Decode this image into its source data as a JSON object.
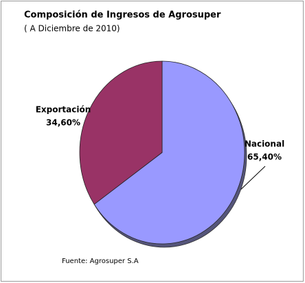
{
  "chart_data": {
    "type": "pie",
    "title": "Composición de Ingresos de Agrosuper",
    "subtitle": "( A Diciembre de 2010)",
    "source": "Fuente: Agrosuper S.A",
    "categories": [
      "Nacional",
      "Exportación"
    ],
    "values": [
      65.4,
      34.6
    ],
    "value_labels": [
      "65,40%",
      "34,60%"
    ],
    "colors": [
      "#9999ff",
      "#993366"
    ]
  }
}
